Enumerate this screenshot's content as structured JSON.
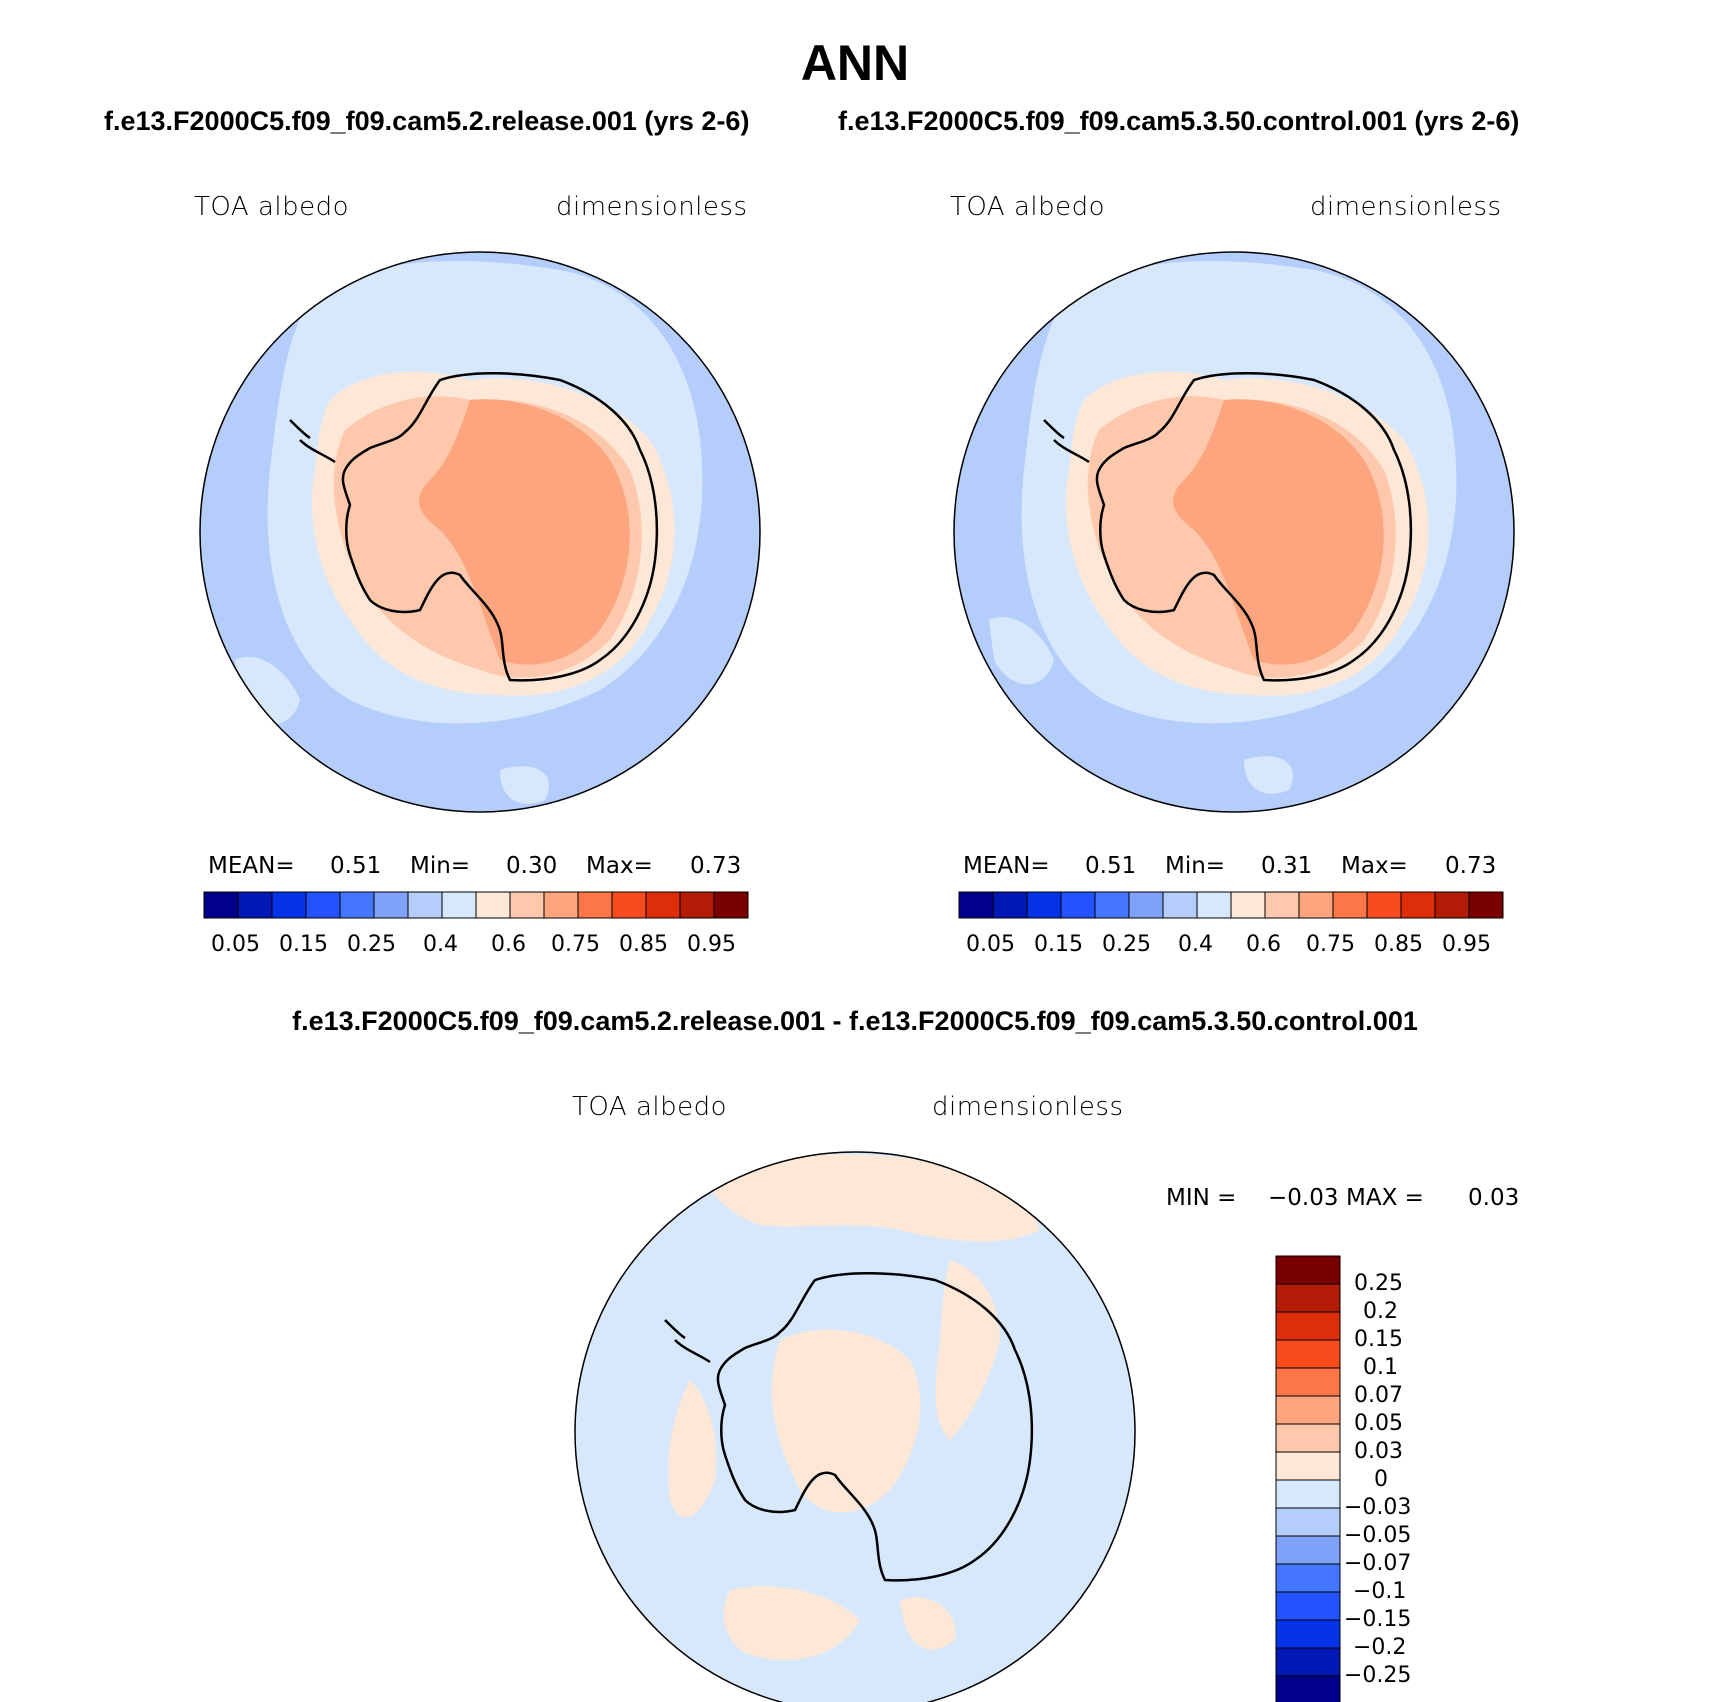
{
  "figure": {
    "title": "ANN",
    "case1_title": "f.e13.F2000C5.f09_f09.cam5.2.release.001 (yrs 2-6)",
    "case2_title": "f.e13.F2000C5.f09_f09.cam5.3.50.control.001 (yrs 2-6)",
    "diff_title": "f.e13.F2000C5.f09_f09.cam5.2.release.001 - f.e13.F2000C5.f09_f09.cam5.3.50.control.001"
  },
  "panels": [
    {
      "variable": "TOA albedo",
      "units": "dimensionless",
      "mean_label": "MEAN=",
      "mean": "0.51",
      "min_label": "Min=",
      "min": "0.30",
      "max_label": "Max=",
      "max": "0.73"
    },
    {
      "variable": "TOA albedo",
      "units": "dimensionless",
      "mean_label": "MEAN=",
      "mean": "0.51",
      "min_label": "Min=",
      "min": "0.31",
      "max_label": "Max=",
      "max": "0.73"
    },
    {
      "variable": "TOA albedo",
      "units": "dimensionless",
      "min_label": "MIN =",
      "min": "−0.03",
      "max_label": "MAX =",
      "max": "0.03"
    }
  ],
  "colorbar_main": {
    "colors": [
      "#00008a",
      "#0018b4",
      "#0432e6",
      "#2352ff",
      "#4576ff",
      "#7fa2f8",
      "#b4cdfb",
      "#d7e8fd",
      "#fde7d6",
      "#fdc8ac",
      "#fca57e",
      "#fc7648",
      "#f84c1e",
      "#de2d0a",
      "#b21c06",
      "#7a0000"
    ],
    "labels": [
      "0.05",
      "0.15",
      "0.25",
      "0.4",
      "0.6",
      "0.75",
      "0.85",
      "0.95"
    ]
  },
  "colorbar_diff": {
    "colors": [
      "#7a0000",
      "#b21c06",
      "#de2d0a",
      "#f84c1e",
      "#fc7648",
      "#fca57e",
      "#fdc8ac",
      "#fde7d6",
      "#d7e8fd",
      "#b4cdfb",
      "#7fa2f8",
      "#4576ff",
      "#2352ff",
      "#0432e6",
      "#0018b4",
      "#00008a"
    ],
    "labels": [
      "0.25",
      "0.2",
      "0.15",
      "0.1",
      "0.07",
      "0.05",
      "0.03",
      "0",
      "−0.03",
      "−0.05",
      "−0.07",
      "−0.1",
      "−0.15",
      "−0.2",
      "−0.25"
    ]
  },
  "chart_data": [
    {
      "type": "heatmap",
      "title": "f.e13.F2000C5.f09_f09.cam5.2.release.001 (yrs 2-6)",
      "variable": "TOA albedo",
      "units": "dimensionless",
      "projection": "south polar stereographic",
      "mean": 0.51,
      "min": 0.3,
      "max": 0.73,
      "contour_levels": [
        0.05,
        0.1,
        0.15,
        0.2,
        0.25,
        0.3,
        0.4,
        0.5,
        0.6,
        0.65,
        0.75,
        0.8,
        0.85,
        0.9,
        0.95
      ],
      "colorbar_tick_labels": [
        "0.05",
        "0.15",
        "0.25",
        "0.4",
        "0.6",
        "0.75",
        "0.85",
        "0.95"
      ]
    },
    {
      "type": "heatmap",
      "title": "f.e13.F2000C5.f09_f09.cam5.3.50.control.001 (yrs 2-6)",
      "variable": "TOA albedo",
      "units": "dimensionless",
      "projection": "south polar stereographic",
      "mean": 0.51,
      "min": 0.31,
      "max": 0.73,
      "contour_levels": [
        0.05,
        0.1,
        0.15,
        0.2,
        0.25,
        0.3,
        0.4,
        0.5,
        0.6,
        0.65,
        0.75,
        0.8,
        0.85,
        0.9,
        0.95
      ],
      "colorbar_tick_labels": [
        "0.05",
        "0.15",
        "0.25",
        "0.4",
        "0.6",
        "0.75",
        "0.85",
        "0.95"
      ]
    },
    {
      "type": "heatmap",
      "title": "f.e13.F2000C5.f09_f09.cam5.2.release.001 - f.e13.F2000C5.f09_f09.cam5.3.50.control.001",
      "variable": "TOA albedo",
      "units": "dimensionless",
      "projection": "south polar stereographic",
      "min": -0.03,
      "max": 0.03,
      "contour_levels": [
        -0.25,
        -0.2,
        -0.15,
        -0.1,
        -0.07,
        -0.05,
        -0.03,
        0,
        0.03,
        0.05,
        0.07,
        0.1,
        0.15,
        0.2,
        0.25
      ],
      "colorbar_tick_labels": [
        "0.25",
        "0.2",
        "0.15",
        "0.1",
        "0.07",
        "0.05",
        "0.03",
        "0",
        "−0.03",
        "−0.05",
        "−0.07",
        "−0.1",
        "−0.15",
        "−0.2",
        "−0.25"
      ]
    }
  ]
}
